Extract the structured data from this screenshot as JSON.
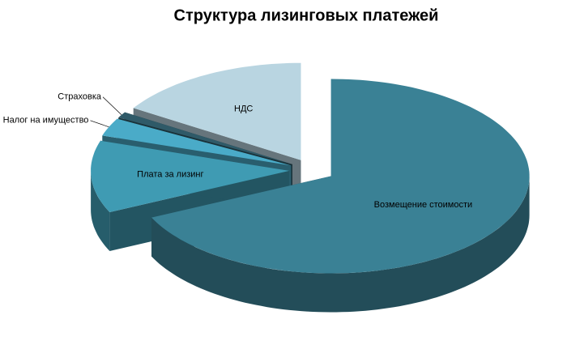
{
  "chart_data": {
    "type": "pie3d",
    "title": "Структура лизинговых платежей",
    "categories": [
      "Возмещение стоимости",
      "Плата за лизинг",
      "Налог на имущество",
      "Страховка",
      "НДС"
    ],
    "values": [
      68,
      12,
      3,
      1,
      16
    ],
    "colors": [
      "#3a8195",
      "#3f9bb3",
      "#4aabc8",
      "#2f5a68",
      "#b9d5e1"
    ]
  }
}
